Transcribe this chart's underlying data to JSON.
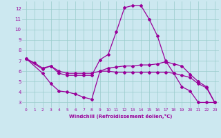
{
  "bg_color": "#cce8f0",
  "line_color": "#990099",
  "grid_color": "#99cccc",
  "xlabel": "Windchill (Refroidissement éolien,°C)",
  "xlabel_color": "#990099",
  "xlim": [
    -0.5,
    23.5
  ],
  "ylim": [
    2.5,
    12.7
  ],
  "yticks": [
    3,
    4,
    5,
    6,
    7,
    8,
    9,
    10,
    11,
    12
  ],
  "xticks": [
    0,
    1,
    2,
    3,
    4,
    5,
    6,
    7,
    8,
    9,
    10,
    11,
    12,
    13,
    14,
    15,
    16,
    17,
    18,
    19,
    20,
    21,
    22,
    23
  ],
  "line1_x": [
    0,
    1,
    2,
    3,
    4,
    5,
    6,
    7,
    8,
    9,
    10,
    11,
    12,
    13,
    14,
    15,
    16,
    17,
    18,
    19,
    20,
    21,
    22,
    23
  ],
  "line1_y": [
    7.2,
    6.8,
    6.3,
    6.5,
    5.8,
    5.6,
    5.6,
    5.6,
    5.6,
    7.1,
    7.6,
    9.8,
    12.1,
    12.3,
    12.3,
    11.0,
    9.4,
    7.0,
    5.8,
    4.5,
    4.1,
    3.0,
    3.0,
    3.0
  ],
  "line2_x": [
    0,
    2,
    3,
    4,
    5,
    6,
    7,
    8,
    9,
    10,
    11,
    12,
    13,
    14,
    15,
    16,
    17,
    18,
    19,
    20,
    21,
    22,
    23
  ],
  "line2_y": [
    7.2,
    6.2,
    6.5,
    6.0,
    5.8,
    5.8,
    5.8,
    5.8,
    6.0,
    6.3,
    6.4,
    6.5,
    6.5,
    6.6,
    6.6,
    6.7,
    6.9,
    6.7,
    6.5,
    5.7,
    5.0,
    4.5,
    3.0
  ],
  "line3_x": [
    0,
    2,
    3,
    4,
    5,
    6,
    7,
    8,
    9,
    10,
    11,
    12,
    13,
    14,
    15,
    16,
    17,
    18,
    19,
    20,
    21,
    22,
    23
  ],
  "line3_y": [
    7.2,
    5.8,
    4.8,
    4.1,
    4.0,
    3.8,
    3.5,
    3.3,
    6.0,
    6.0,
    5.9,
    5.9,
    5.9,
    5.9,
    5.9,
    5.9,
    5.9,
    5.8,
    5.6,
    5.4,
    4.8,
    4.4,
    3.0
  ]
}
